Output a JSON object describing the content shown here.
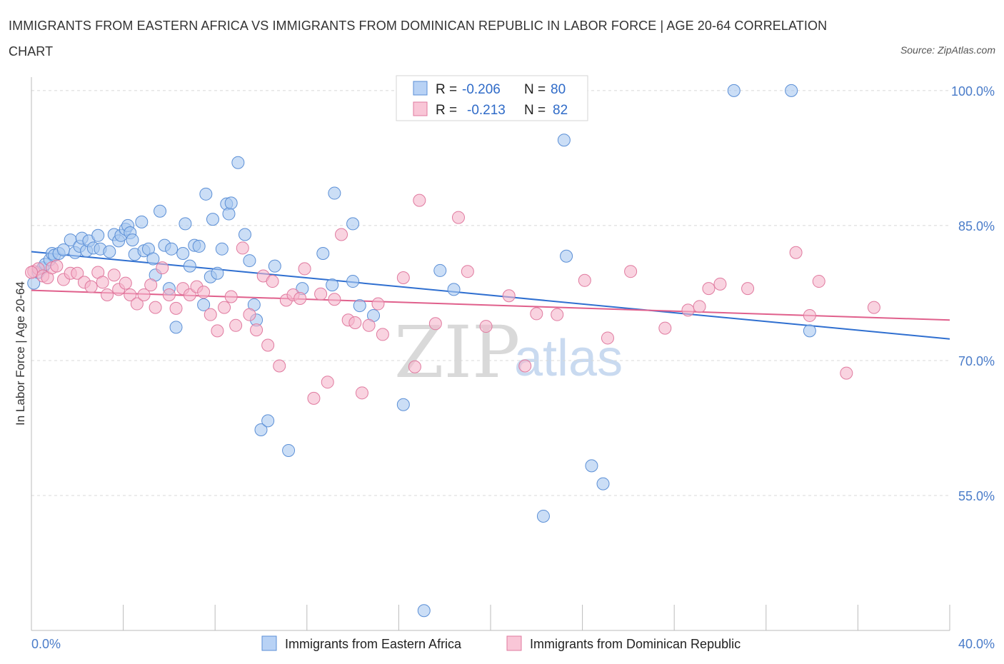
{
  "title": "IMMIGRANTS FROM EASTERN AFRICA VS IMMIGRANTS FROM DOMINICAN REPUBLIC IN LABOR FORCE | AGE 20-64 CORRELATION CHART",
  "source": "Source: ZipAtlas.com",
  "watermark": {
    "zip": "ZIP",
    "atlas": "atlas"
  },
  "legend": {
    "r_label": "R =",
    "n_label": "N =",
    "items": [
      {
        "r": "-0.206",
        "n": "80"
      },
      {
        "r": "-0.213",
        "n": "82"
      }
    ]
  },
  "colors": {
    "blue_fill": "#a9c8f0",
    "blue_stroke": "#5b8fd6",
    "blue_line": "#2f6fd0",
    "pink_fill": "#f5b6cc",
    "pink_stroke": "#e07a9f",
    "pink_line": "#e0608c",
    "axis_text": "#4a7cc9"
  },
  "chart_data": {
    "type": "scatter",
    "title": "IMMIGRANTS FROM EASTERN AFRICA VS IMMIGRANTS FROM DOMINICAN REPUBLIC IN LABOR FORCE | AGE 20-64 CORRELATION CHART",
    "xlabel": "",
    "ylabel": "In Labor Force | Age 20-64",
    "xlim": [
      0,
      40
    ],
    "ylim": [
      40,
      101.5
    ],
    "x_tick_labels": [
      "0.0%",
      "40.0%"
    ],
    "y_ticks": [
      55,
      70,
      85,
      100
    ],
    "y_tick_labels": [
      "55.0%",
      "70.0%",
      "85.0%",
      "100.0%"
    ],
    "grid": "horizontal dashed",
    "legend_position": "top-center",
    "series": [
      {
        "name": "Immigrants from Eastern Africa",
        "r": -0.206,
        "n": 80,
        "trend": [
          [
            0,
            82.1
          ],
          [
            40,
            72.4
          ]
        ],
        "points": [
          [
            0.1,
            78.6
          ],
          [
            0.3,
            79.8
          ],
          [
            0.5,
            80.3
          ],
          [
            0.6,
            80.7
          ],
          [
            0.8,
            81.2
          ],
          [
            0.9,
            81.9
          ],
          [
            1.0,
            81.7
          ],
          [
            1.2,
            81.9
          ],
          [
            1.4,
            82.3
          ],
          [
            1.7,
            83.4
          ],
          [
            1.9,
            82.0
          ],
          [
            2.1,
            82.7
          ],
          [
            2.2,
            83.6
          ],
          [
            2.4,
            82.2
          ],
          [
            2.5,
            83.3
          ],
          [
            2.7,
            82.5
          ],
          [
            2.9,
            83.9
          ],
          [
            3.0,
            82.4
          ],
          [
            3.4,
            82.1
          ],
          [
            3.6,
            84.0
          ],
          [
            3.8,
            83.3
          ],
          [
            3.9,
            83.9
          ],
          [
            4.1,
            84.6
          ],
          [
            4.2,
            85.0
          ],
          [
            4.3,
            84.2
          ],
          [
            4.4,
            83.4
          ],
          [
            4.5,
            81.8
          ],
          [
            4.8,
            85.4
          ],
          [
            4.9,
            82.2
          ],
          [
            5.1,
            82.4
          ],
          [
            5.3,
            81.3
          ],
          [
            5.4,
            79.5
          ],
          [
            5.6,
            86.6
          ],
          [
            5.8,
            82.8
          ],
          [
            6.0,
            78.0
          ],
          [
            6.1,
            82.4
          ],
          [
            6.3,
            73.7
          ],
          [
            6.6,
            81.9
          ],
          [
            6.7,
            85.2
          ],
          [
            6.9,
            80.5
          ],
          [
            7.1,
            82.8
          ],
          [
            7.3,
            82.7
          ],
          [
            7.5,
            76.2
          ],
          [
            7.6,
            88.5
          ],
          [
            7.8,
            79.3
          ],
          [
            7.9,
            85.7
          ],
          [
            8.1,
            79.7
          ],
          [
            8.3,
            82.4
          ],
          [
            8.5,
            87.4
          ],
          [
            8.6,
            86.3
          ],
          [
            8.7,
            87.5
          ],
          [
            9.0,
            92.0
          ],
          [
            9.3,
            84.0
          ],
          [
            9.5,
            81.1
          ],
          [
            9.7,
            76.2
          ],
          [
            9.8,
            74.5
          ],
          [
            10.0,
            62.3
          ],
          [
            10.3,
            63.3
          ],
          [
            10.6,
            80.5
          ],
          [
            11.2,
            60.0
          ],
          [
            11.8,
            78.0
          ],
          [
            12.7,
            81.9
          ],
          [
            13.1,
            78.4
          ],
          [
            13.2,
            88.6
          ],
          [
            14.0,
            85.2
          ],
          [
            14.0,
            78.8
          ],
          [
            14.3,
            76.1
          ],
          [
            14.9,
            75.0
          ],
          [
            16.2,
            65.1
          ],
          [
            17.8,
            80.0
          ],
          [
            18.4,
            77.9
          ],
          [
            22.3,
            52.7
          ],
          [
            23.2,
            94.5
          ],
          [
            23.3,
            81.6
          ],
          [
            24.4,
            58.3
          ],
          [
            24.9,
            56.3
          ],
          [
            30.6,
            100.0
          ],
          [
            33.1,
            100.0
          ],
          [
            33.9,
            73.3
          ],
          [
            17.1,
            42.2
          ]
        ]
      },
      {
        "name": "Immigrants from Dominican Republic",
        "r": -0.213,
        "n": 82,
        "trend": [
          [
            0,
            77.8
          ],
          [
            40,
            74.5
          ]
        ],
        "points": [
          [
            0.1,
            79.9
          ],
          [
            0.3,
            80.2
          ],
          [
            0.5,
            79.4
          ],
          [
            0.7,
            79.2
          ],
          [
            0.9,
            80.3
          ],
          [
            1.1,
            80.5
          ],
          [
            1.4,
            79.0
          ],
          [
            1.7,
            79.7
          ],
          [
            2.0,
            79.7
          ],
          [
            2.3,
            78.7
          ],
          [
            2.6,
            78.2
          ],
          [
            2.9,
            79.8
          ],
          [
            3.1,
            78.7
          ],
          [
            3.3,
            77.3
          ],
          [
            3.6,
            79.5
          ],
          [
            3.8,
            77.9
          ],
          [
            4.1,
            78.6
          ],
          [
            4.3,
            77.3
          ],
          [
            4.6,
            76.3
          ],
          [
            4.9,
            77.3
          ],
          [
            5.2,
            78.4
          ],
          [
            5.4,
            75.9
          ],
          [
            5.7,
            80.3
          ],
          [
            6.0,
            77.3
          ],
          [
            6.3,
            75.8
          ],
          [
            6.6,
            78.0
          ],
          [
            6.9,
            77.3
          ],
          [
            7.2,
            78.2
          ],
          [
            7.5,
            77.6
          ],
          [
            7.8,
            75.1
          ],
          [
            8.1,
            73.3
          ],
          [
            8.4,
            75.9
          ],
          [
            8.7,
            77.1
          ],
          [
            8.9,
            73.9
          ],
          [
            9.2,
            82.5
          ],
          [
            9.5,
            75.1
          ],
          [
            9.8,
            73.4
          ],
          [
            10.1,
            79.4
          ],
          [
            10.3,
            71.7
          ],
          [
            10.5,
            78.8
          ],
          [
            10.8,
            69.4
          ],
          [
            11.1,
            76.7
          ],
          [
            11.4,
            77.3
          ],
          [
            11.7,
            76.9
          ],
          [
            11.9,
            80.2
          ],
          [
            12.3,
            65.8
          ],
          [
            12.6,
            77.4
          ],
          [
            12.9,
            67.6
          ],
          [
            13.2,
            76.8
          ],
          [
            13.5,
            84.0
          ],
          [
            13.8,
            74.5
          ],
          [
            14.1,
            74.2
          ],
          [
            14.4,
            66.4
          ],
          [
            14.7,
            73.9
          ],
          [
            15.1,
            76.3
          ],
          [
            15.3,
            72.9
          ],
          [
            16.2,
            79.2
          ],
          [
            16.7,
            69.3
          ],
          [
            16.9,
            87.8
          ],
          [
            17.6,
            74.1
          ],
          [
            18.6,
            85.9
          ],
          [
            19.0,
            79.9
          ],
          [
            19.8,
            73.8
          ],
          [
            20.8,
            77.2
          ],
          [
            21.5,
            69.4
          ],
          [
            22.0,
            75.2
          ],
          [
            22.9,
            75.1
          ],
          [
            24.1,
            78.9
          ],
          [
            25.1,
            72.5
          ],
          [
            26.1,
            79.9
          ],
          [
            27.6,
            73.6
          ],
          [
            28.6,
            75.6
          ],
          [
            29.1,
            76.0
          ],
          [
            29.5,
            78.0
          ],
          [
            30.0,
            78.5
          ],
          [
            31.2,
            78.0
          ],
          [
            33.3,
            82.0
          ],
          [
            33.9,
            75.0
          ],
          [
            34.3,
            78.8
          ],
          [
            35.5,
            68.6
          ],
          [
            36.7,
            75.9
          ],
          [
            0.0,
            79.8
          ]
        ]
      }
    ]
  }
}
